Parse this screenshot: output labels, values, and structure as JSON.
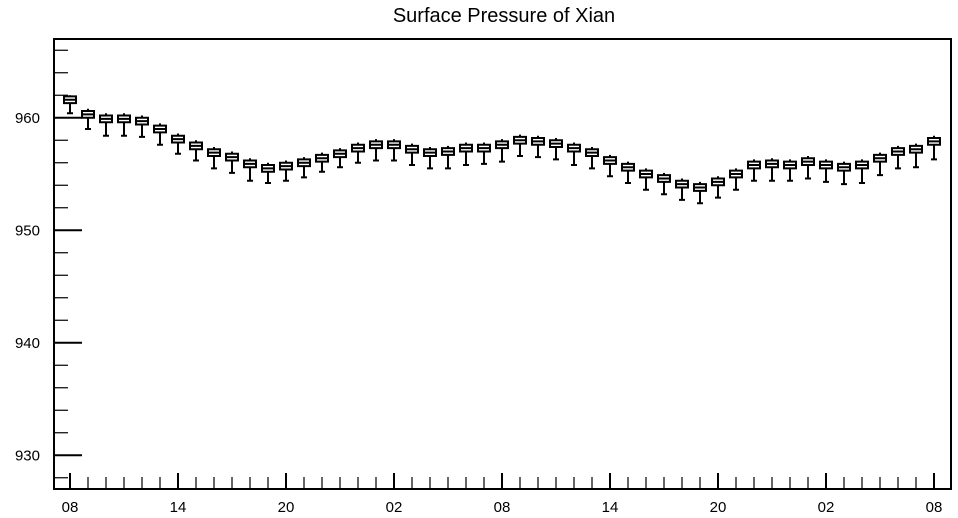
{
  "chart_data": {
    "type": "boxplot",
    "title": "Surface Pressure of Xian",
    "xlabel": "",
    "ylabel": "",
    "ylim": [
      927,
      967
    ],
    "y_ticks": [
      "930",
      "940",
      "950",
      "960"
    ],
    "x_tick_labels": [
      "08",
      "14",
      "20",
      "02",
      "08",
      "14",
      "20",
      "02",
      "08"
    ],
    "x_tick_positions": [
      0,
      6,
      12,
      18,
      24,
      30,
      36,
      42,
      48
    ],
    "grid": false,
    "legend": "none",
    "colors": {
      "box": "#000000",
      "background": "#ffffff"
    },
    "series": [
      {
        "x": [
          0,
          1,
          2,
          3,
          4,
          5,
          6,
          7,
          8,
          9,
          10,
          11,
          12,
          13,
          14,
          15,
          16,
          17,
          18,
          19,
          20,
          21,
          22,
          23,
          24,
          25,
          26,
          27,
          28,
          29,
          30,
          31,
          32,
          33,
          34,
          35,
          36,
          37,
          38,
          39,
          40,
          41,
          42,
          43,
          44,
          45,
          46,
          47,
          48
        ],
        "median": [
          961.6,
          960.3,
          959.9,
          959.9,
          959.7,
          959.0,
          958.1,
          957.5,
          956.9,
          956.5,
          955.9,
          955.5,
          955.7,
          956.0,
          956.4,
          956.8,
          957.3,
          957.6,
          957.6,
          957.2,
          956.9,
          957.0,
          957.3,
          957.3,
          957.6,
          958.0,
          957.9,
          957.7,
          957.3,
          956.9,
          956.2,
          955.6,
          955.0,
          954.6,
          954.1,
          953.8,
          954.3,
          955.0,
          955.8,
          955.9,
          955.8,
          956.1,
          955.8,
          955.6,
          955.8,
          956.4,
          957.0,
          957.2,
          957.9
        ],
        "q1": [
          961.3,
          960.0,
          959.6,
          959.6,
          959.4,
          958.7,
          957.8,
          957.2,
          956.6,
          956.2,
          955.6,
          955.2,
          955.4,
          955.7,
          956.1,
          956.5,
          957.0,
          957.3,
          957.3,
          956.9,
          956.6,
          956.7,
          957.0,
          957.0,
          957.3,
          957.7,
          957.6,
          957.4,
          957.0,
          956.6,
          955.9,
          955.3,
          954.7,
          954.3,
          953.8,
          953.5,
          954.0,
          954.7,
          955.5,
          955.6,
          955.5,
          955.8,
          955.5,
          955.3,
          955.5,
          956.1,
          956.7,
          956.9,
          957.6
        ],
        "q3": [
          961.9,
          960.6,
          960.2,
          960.2,
          960.0,
          959.3,
          958.4,
          957.8,
          957.2,
          956.8,
          956.2,
          955.8,
          956.0,
          956.3,
          956.7,
          957.1,
          957.6,
          957.9,
          957.9,
          957.5,
          957.2,
          957.3,
          957.6,
          957.6,
          957.9,
          958.3,
          958.2,
          958.0,
          957.6,
          957.2,
          956.5,
          955.9,
          955.3,
          954.9,
          954.4,
          954.1,
          954.6,
          955.3,
          956.1,
          956.2,
          956.1,
          956.4,
          956.1,
          955.9,
          956.1,
          956.7,
          957.3,
          957.5,
          958.2
        ],
        "low": [
          960.4,
          959.0,
          958.4,
          958.4,
          958.3,
          957.6,
          956.8,
          956.2,
          955.5,
          955.1,
          954.4,
          954.2,
          954.4,
          954.7,
          955.2,
          955.6,
          956.0,
          956.2,
          956.2,
          955.8,
          955.5,
          955.5,
          955.8,
          955.9,
          956.1,
          956.6,
          956.5,
          956.3,
          955.8,
          955.5,
          954.8,
          954.2,
          953.6,
          953.2,
          952.7,
          952.4,
          952.9,
          953.6,
          954.4,
          954.4,
          954.4,
          954.6,
          954.3,
          954.1,
          954.2,
          954.9,
          955.5,
          955.6,
          956.3
        ],
        "high": [
          962.0,
          960.8,
          960.4,
          960.4,
          960.2,
          959.5,
          958.6,
          958.0,
          957.4,
          957.0,
          956.4,
          956.0,
          956.2,
          956.5,
          956.9,
          957.3,
          957.8,
          958.1,
          958.1,
          957.7,
          957.4,
          957.5,
          957.8,
          957.8,
          958.1,
          958.5,
          958.4,
          958.2,
          957.8,
          957.4,
          956.7,
          956.1,
          955.5,
          955.1,
          954.6,
          954.3,
          954.8,
          955.5,
          956.3,
          956.4,
          956.3,
          956.6,
          956.3,
          956.1,
          956.3,
          956.9,
          957.5,
          957.7,
          958.4
        ]
      }
    ]
  }
}
